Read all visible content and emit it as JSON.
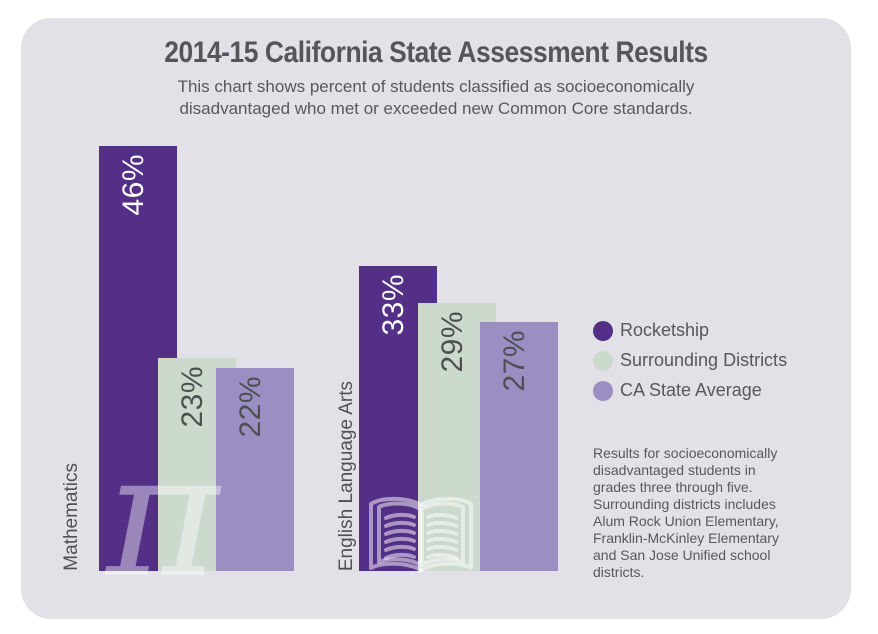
{
  "header": {
    "title": "2014-15 California State Assessment Results",
    "subtitle": "This chart shows percent of students classified as socioeconomically\ndisadvantaged who met or exceeded new Common Core standards."
  },
  "chart_data": {
    "type": "bar",
    "title": "2014-15 California State Assessment Results",
    "subtitle": "This chart shows percent of students classified as socioeconomically disadvantaged who met or exceeded new Common Core standards.",
    "categories": [
      "Mathematics",
      "English Language Arts"
    ],
    "series": [
      {
        "name": "Rocketship",
        "color": "#542f87",
        "values": [
          46,
          33
        ],
        "labels": [
          "46%",
          "33%"
        ],
        "label_color": "#ffffff"
      },
      {
        "name": "Surrounding Districts",
        "color": "#cbdacd",
        "values": [
          23,
          29
        ],
        "labels": [
          "23%",
          "29%"
        ],
        "label_color": "#4f4f52"
      },
      {
        "name": "CA State Average",
        "color": "#9b8ec3",
        "values": [
          22,
          27
        ],
        "labels": [
          "22%",
          "27%"
        ],
        "label_color": "#4f4f52"
      }
    ],
    "unit": "%",
    "ylim": [
      0,
      50
    ],
    "grid": false,
    "legend_position": "right",
    "bar_orientation": "vertical",
    "value_label_rotation": -90
  },
  "icons": {
    "mathematics": "pi-icon",
    "english_language_arts": "open-book-icon",
    "pi_glyph": "π"
  },
  "footnote": "Results for socioeconomically\ndisadvantaged students in\ngrades three through five.\nSurrounding districts includes\nAlum Rock Union Elementary,\nFranklin-McKinley Elementary\nand San Jose Unified school\ndistricts.",
  "colors": {
    "page_background": "#ffffff",
    "card_background": "#e2e1e8",
    "title_text": "#565659",
    "body_text": "#58585b"
  }
}
